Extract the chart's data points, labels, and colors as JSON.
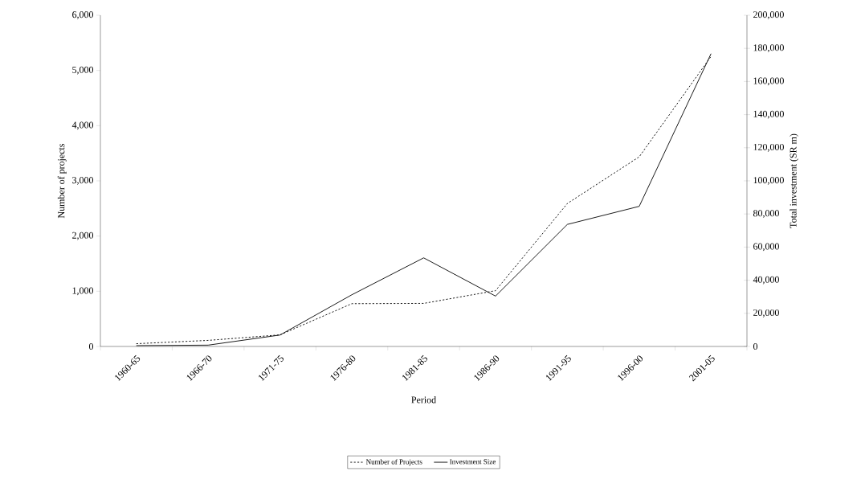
{
  "chart_data": {
    "type": "line",
    "xlabel": "Period",
    "ylabel": "Number of projects",
    "y2label": "Total investment (SR m)",
    "categories": [
      "1960-65",
      "1966-70",
      "1971-75",
      "1976-80",
      "1981-85",
      "1986-90",
      "1991-95",
      "1996-00",
      "2001-05"
    ],
    "series": [
      {
        "name": "Number of Projects",
        "color": "#000000",
        "line_style": "dashed",
        "values": [
          50,
          110,
          210,
          775,
          780,
          1010,
          2590,
          3435,
          5255
        ]
      },
      {
        "name": "Investment Size",
        "color": "#000000",
        "line_style": "solid",
        "axis": "y2",
        "values": [
          500,
          800,
          6900,
          31200,
          53500,
          30400,
          73700,
          84600,
          176800
        ]
      }
    ],
    "ylim": [
      0,
      6000
    ],
    "yticks": [
      0,
      {
        "value": 1000,
        "label": "1,000"
      },
      {
        "value": 2000,
        "label": "2,000"
      },
      {
        "value": 3000,
        "label": "3,000"
      },
      {
        "value": 4000,
        "label": "4,000"
      },
      {
        "value": 5000,
        "label": "5,000"
      },
      {
        "value": 6000,
        "label": "6,000"
      }
    ],
    "y2lim": [
      0,
      200000
    ],
    "y2ticks": [
      0,
      {
        "value": 20000,
        "label": "20,000"
      },
      {
        "value": 40000,
        "label": "40,000"
      },
      {
        "value": 60000,
        "label": "60,000"
      },
      {
        "value": 80000,
        "label": "80,000"
      },
      {
        "value": 100000,
        "label": "100,000"
      },
      {
        "value": 120000,
        "label": "120,000"
      },
      {
        "value": 140000,
        "label": "140,000"
      },
      {
        "value": 160000,
        "label": "160,000"
      },
      {
        "value": 180000,
        "label": "180,000"
      },
      {
        "value": 200000,
        "label": "200,000"
      }
    ],
    "legend": "bottom",
    "marker": "none",
    "grid": false
  }
}
